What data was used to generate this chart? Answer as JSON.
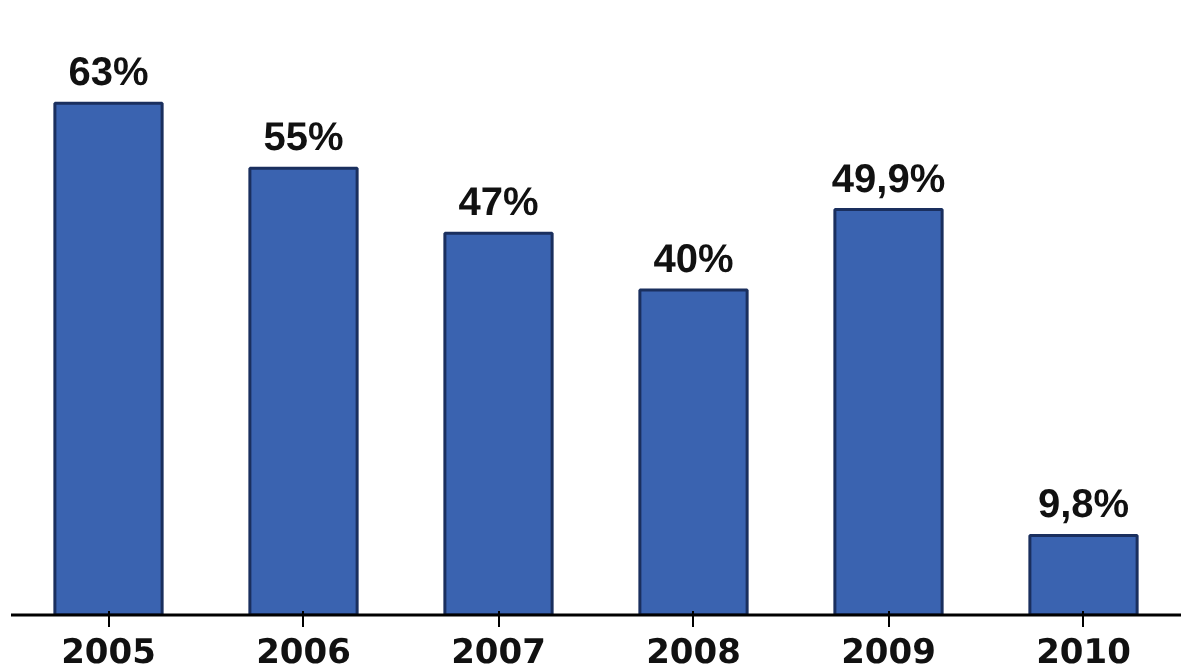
{
  "chart_data": {
    "type": "bar",
    "categories": [
      "2005",
      "2006",
      "2007",
      "2008",
      "2009",
      "2010"
    ],
    "values": [
      63,
      55,
      47,
      40,
      49.9,
      9.8
    ],
    "value_labels": [
      "63%",
      "55%",
      "47%",
      "40%",
      "49,9%",
      "9,8%"
    ],
    "color": "#3a63b0",
    "grid": false
  }
}
